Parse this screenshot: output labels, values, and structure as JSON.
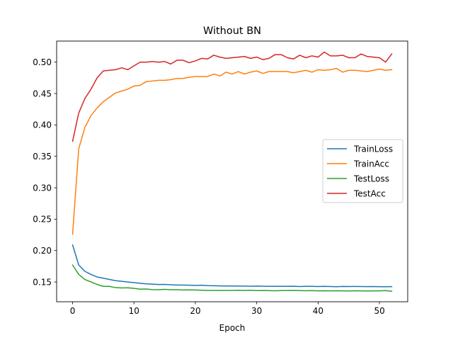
{
  "chart_data": {
    "type": "line",
    "title": "Without BN",
    "xlabel": "Epoch",
    "ylabel": "",
    "xlim": [
      -2.6,
      54.6
    ],
    "ylim": [
      0.1185,
      0.5335
    ],
    "xticks": [
      0,
      10,
      20,
      30,
      40,
      50
    ],
    "yticks": [
      0.15,
      0.2,
      0.25,
      0.3,
      0.35,
      0.4,
      0.45,
      0.5
    ],
    "ytick_labels": [
      "0.15",
      "0.20",
      "0.25",
      "0.30",
      "0.35",
      "0.40",
      "0.45",
      "0.50"
    ],
    "grid": false,
    "legend_position": "center-right",
    "x": [
      0,
      1,
      2,
      3,
      4,
      5,
      6,
      7,
      8,
      9,
      10,
      11,
      12,
      13,
      14,
      15,
      16,
      17,
      18,
      19,
      20,
      21,
      22,
      23,
      24,
      25,
      26,
      27,
      28,
      29,
      30,
      31,
      32,
      33,
      34,
      35,
      36,
      37,
      38,
      39,
      40,
      41,
      42,
      43,
      44,
      45,
      46,
      47,
      48,
      49,
      50,
      51,
      52
    ],
    "series": [
      {
        "name": "TrainLoss",
        "color": "#1f77b4",
        "values": [
          0.209,
          0.177,
          0.167,
          0.162,
          0.158,
          0.156,
          0.154,
          0.152,
          0.151,
          0.15,
          0.149,
          0.148,
          0.147,
          0.1465,
          0.146,
          0.1462,
          0.1455,
          0.1452,
          0.145,
          0.1448,
          0.1445,
          0.1448,
          0.1442,
          0.144,
          0.1438,
          0.1436,
          0.1436,
          0.1435,
          0.1434,
          0.1432,
          0.1435,
          0.1432,
          0.1431,
          0.143,
          0.143,
          0.143,
          0.1432,
          0.1428,
          0.143,
          0.1431,
          0.1428,
          0.143,
          0.1428,
          0.1425,
          0.1429,
          0.1428,
          0.1429,
          0.1428,
          0.1426,
          0.1428,
          0.1424,
          0.1425,
          0.1426
        ]
      },
      {
        "name": "TrainAcc",
        "color": "#ff7f0e",
        "values": [
          0.226,
          0.362,
          0.396,
          0.415,
          0.427,
          0.437,
          0.444,
          0.451,
          0.454,
          0.457,
          0.462,
          0.463,
          0.469,
          0.47,
          0.471,
          0.471,
          0.472,
          0.474,
          0.474,
          0.476,
          0.477,
          0.477,
          0.477,
          0.481,
          0.478,
          0.484,
          0.481,
          0.485,
          0.481,
          0.484,
          0.486,
          0.482,
          0.485,
          0.485,
          0.485,
          0.485,
          0.483,
          0.485,
          0.487,
          0.484,
          0.488,
          0.487,
          0.488,
          0.49,
          0.484,
          0.487,
          0.487,
          0.486,
          0.485,
          0.487,
          0.489,
          0.487,
          0.488
        ]
      },
      {
        "name": "TestLoss",
        "color": "#2ca02c",
        "values": [
          0.177,
          0.162,
          0.154,
          0.15,
          0.146,
          0.143,
          0.143,
          0.141,
          0.1405,
          0.1408,
          0.1398,
          0.1385,
          0.1388,
          0.1378,
          0.1376,
          0.1382,
          0.1376,
          0.1376,
          0.1372,
          0.1374,
          0.1372,
          0.1368,
          0.1366,
          0.1365,
          0.1364,
          0.1366,
          0.1365,
          0.1368,
          0.1364,
          0.1368,
          0.1362,
          0.1364,
          0.1362,
          0.136,
          0.1362,
          0.1364,
          0.1365,
          0.1362,
          0.136,
          0.1362,
          0.1358,
          0.136,
          0.1358,
          0.136,
          0.1358,
          0.1357,
          0.136,
          0.1358,
          0.1357,
          0.1358,
          0.1358,
          0.1362,
          0.1352
        ]
      },
      {
        "name": "TestAcc",
        "color": "#d62728",
        "values": [
          0.374,
          0.419,
          0.442,
          0.457,
          0.475,
          0.486,
          0.487,
          0.488,
          0.491,
          0.488,
          0.494,
          0.5,
          0.5,
          0.501,
          0.5,
          0.501,
          0.497,
          0.503,
          0.503,
          0.499,
          0.502,
          0.506,
          0.505,
          0.511,
          0.508,
          0.506,
          0.507,
          0.508,
          0.509,
          0.506,
          0.508,
          0.504,
          0.506,
          0.512,
          0.512,
          0.507,
          0.505,
          0.511,
          0.507,
          0.51,
          0.508,
          0.516,
          0.51,
          0.51,
          0.511,
          0.507,
          0.507,
          0.513,
          0.509,
          0.508,
          0.507,
          0.5,
          0.513
        ]
      }
    ]
  }
}
